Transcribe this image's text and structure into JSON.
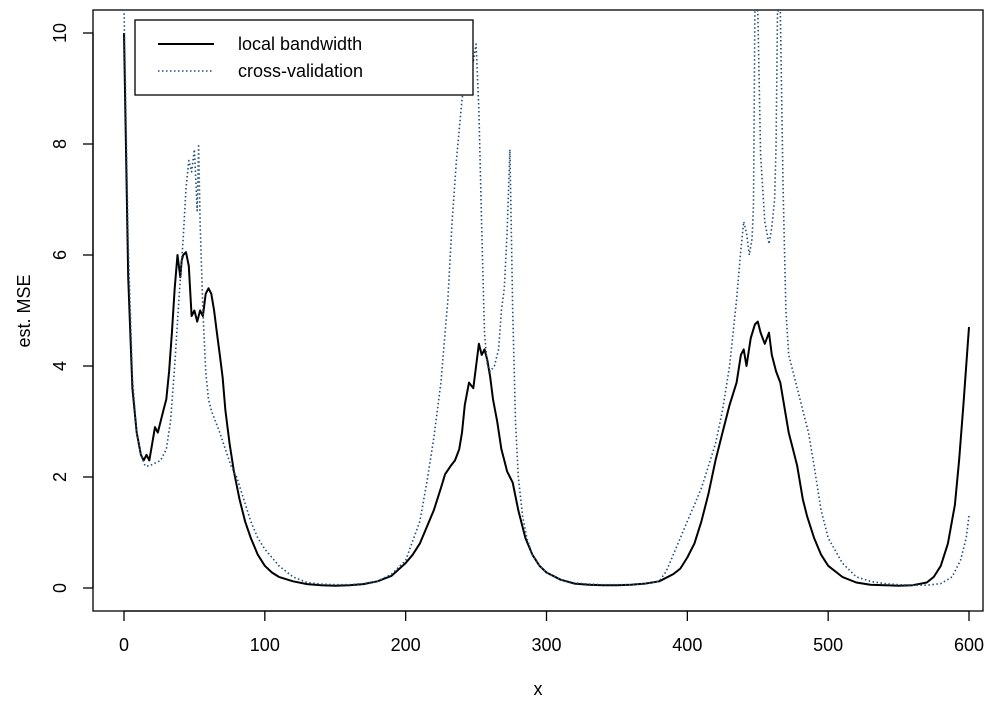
{
  "chart_data": {
    "type": "line",
    "xlabel": "x",
    "ylabel": "est. MSE",
    "xlim": [
      0,
      600
    ],
    "ylim": [
      0,
      10
    ],
    "xticks": [
      0,
      100,
      200,
      300,
      400,
      500,
      600
    ],
    "yticks": [
      0,
      2,
      4,
      6,
      8,
      10
    ],
    "legend_position": "top-left",
    "series": [
      {
        "name": "local bandwidth",
        "style": "solid",
        "color": "#000000",
        "x": [
          0,
          3,
          6,
          9,
          12,
          14,
          16,
          18,
          20,
          22,
          24,
          26,
          28,
          30,
          32,
          34,
          36,
          38,
          40,
          41,
          42,
          44,
          46,
          48,
          50,
          52,
          54,
          56,
          58,
          60,
          62,
          64,
          66,
          68,
          70,
          72,
          75,
          78,
          82,
          86,
          90,
          95,
          100,
          105,
          110,
          120,
          130,
          140,
          150,
          160,
          170,
          180,
          190,
          200,
          205,
          210,
          215,
          220,
          225,
          228,
          232,
          235,
          238,
          240,
          242,
          245,
          248,
          250,
          252,
          254,
          256,
          258,
          260,
          262,
          265,
          268,
          270,
          272,
          274,
          276,
          280,
          285,
          290,
          295,
          300,
          310,
          320,
          330,
          340,
          350,
          360,
          370,
          380,
          390,
          395,
          400,
          405,
          410,
          415,
          420,
          425,
          430,
          435,
          438,
          440,
          442,
          445,
          448,
          450,
          452,
          455,
          458,
          460,
          463,
          466,
          468,
          470,
          472,
          475,
          478,
          480,
          482,
          485,
          490,
          495,
          500,
          510,
          520,
          530,
          540,
          550,
          560,
          570,
          575,
          580,
          585,
          590,
          593,
          596,
          598,
          600
        ],
        "y": [
          10.0,
          5.6,
          3.6,
          2.8,
          2.4,
          2.3,
          2.4,
          2.3,
          2.6,
          2.9,
          2.8,
          3.0,
          3.2,
          3.4,
          3.9,
          4.6,
          5.4,
          6.0,
          5.6,
          5.9,
          6.0,
          6.05,
          5.8,
          4.9,
          5.0,
          4.8,
          5.0,
          4.9,
          5.3,
          5.4,
          5.3,
          5.0,
          4.6,
          4.2,
          3.8,
          3.2,
          2.6,
          2.1,
          1.6,
          1.2,
          0.9,
          0.6,
          0.4,
          0.28,
          0.2,
          0.12,
          0.07,
          0.05,
          0.04,
          0.05,
          0.07,
          0.12,
          0.22,
          0.45,
          0.6,
          0.8,
          1.1,
          1.4,
          1.8,
          2.05,
          2.2,
          2.3,
          2.5,
          2.8,
          3.3,
          3.7,
          3.6,
          4.0,
          4.4,
          4.2,
          4.3,
          4.1,
          3.8,
          3.4,
          3.0,
          2.5,
          2.3,
          2.1,
          2.0,
          1.9,
          1.4,
          0.9,
          0.6,
          0.4,
          0.28,
          0.15,
          0.08,
          0.06,
          0.05,
          0.05,
          0.06,
          0.08,
          0.12,
          0.25,
          0.35,
          0.55,
          0.8,
          1.2,
          1.7,
          2.3,
          2.8,
          3.3,
          3.7,
          4.2,
          4.3,
          4.0,
          4.5,
          4.75,
          4.8,
          4.6,
          4.4,
          4.6,
          4.2,
          3.9,
          3.7,
          3.4,
          3.1,
          2.8,
          2.5,
          2.2,
          1.9,
          1.6,
          1.3,
          0.9,
          0.6,
          0.4,
          0.2,
          0.1,
          0.06,
          0.05,
          0.04,
          0.05,
          0.1,
          0.2,
          0.4,
          0.8,
          1.5,
          2.3,
          3.3,
          4.0,
          4.7
        ]
      },
      {
        "name": "cross-validation",
        "style": "dotted",
        "color": "#1f4e79",
        "x": [
          0,
          3,
          6,
          9,
          12,
          15,
          18,
          22,
          26,
          30,
          33,
          36,
          39,
          42,
          44,
          46,
          48,
          50,
          52,
          53,
          54,
          56,
          58,
          60,
          62,
          65,
          68,
          72,
          76,
          80,
          85,
          90,
          95,
          100,
          110,
          120,
          130,
          140,
          150,
          160,
          170,
          180,
          190,
          200,
          210,
          215,
          220,
          225,
          230,
          233,
          236,
          240,
          243,
          246,
          248,
          250,
          252,
          254,
          256,
          258,
          260,
          263,
          266,
          268,
          270,
          272,
          274,
          276,
          278,
          280,
          283,
          286,
          290,
          295,
          300,
          310,
          320,
          330,
          340,
          350,
          360,
          370,
          380,
          385,
          390,
          395,
          400,
          405,
          410,
          415,
          420,
          425,
          430,
          435,
          438,
          440,
          442,
          444,
          446,
          447,
          448,
          450,
          452,
          455,
          458,
          460,
          462,
          463,
          464,
          466,
          468,
          470,
          472,
          475,
          478,
          482,
          486,
          490,
          495,
          500,
          510,
          520,
          530,
          540,
          550,
          560,
          570,
          580,
          588,
          594,
          598,
          600
        ],
        "y": [
          10.5,
          6.2,
          3.8,
          2.8,
          2.4,
          2.2,
          2.2,
          2.25,
          2.3,
          2.5,
          3.0,
          4.0,
          5.2,
          6.3,
          7.2,
          7.7,
          7.5,
          7.9,
          6.8,
          8.0,
          6.6,
          5.0,
          3.9,
          3.4,
          3.2,
          3.0,
          2.8,
          2.5,
          2.2,
          2.0,
          1.6,
          1.2,
          0.9,
          0.7,
          0.4,
          0.2,
          0.1,
          0.07,
          0.06,
          0.06,
          0.08,
          0.12,
          0.25,
          0.5,
          1.2,
          1.9,
          2.7,
          3.7,
          5.2,
          6.6,
          7.7,
          8.8,
          9.4,
          9.7,
          9.5,
          9.8,
          8.6,
          6.5,
          4.6,
          4.0,
          3.9,
          4.0,
          4.3,
          5.0,
          5.4,
          6.4,
          7.9,
          5.0,
          3.0,
          2.0,
          1.3,
          0.9,
          0.6,
          0.4,
          0.28,
          0.15,
          0.09,
          0.07,
          0.06,
          0.06,
          0.06,
          0.08,
          0.12,
          0.3,
          0.6,
          0.9,
          1.2,
          1.5,
          1.8,
          2.2,
          2.6,
          3.2,
          4.0,
          5.2,
          6.1,
          6.6,
          6.4,
          6.0,
          6.3,
          6.9,
          10.4,
          10.4,
          7.8,
          6.6,
          6.2,
          6.5,
          7.0,
          8.0,
          10.4,
          10.4,
          7.2,
          5.0,
          4.2,
          3.9,
          3.6,
          3.2,
          2.8,
          2.2,
          1.4,
          0.9,
          0.45,
          0.2,
          0.12,
          0.08,
          0.06,
          0.05,
          0.05,
          0.08,
          0.2,
          0.5,
          0.9,
          1.3
        ]
      }
    ]
  }
}
